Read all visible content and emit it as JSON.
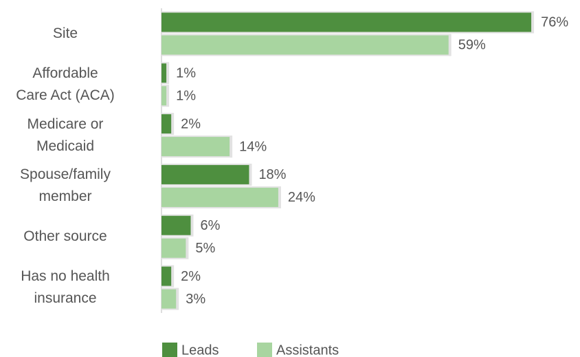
{
  "chart_data": {
    "type": "bar",
    "orientation": "horizontal",
    "categories": [
      "Site",
      "Affordable\nCare Act (ACA)",
      "Medicare or\nMedicaid",
      "Spouse/family\nmember",
      "Other source",
      "Has no health\ninsurance"
    ],
    "series": [
      {
        "name": "Leads",
        "color": "#4e8f3f",
        "values": [
          76,
          1,
          2,
          18,
          6,
          2
        ],
        "value_labels": [
          "76%",
          "1%",
          "2%",
          "18%",
          "6%",
          "2%"
        ]
      },
      {
        "name": "Assistants",
        "color": "#a8d5a0",
        "values": [
          59,
          1,
          14,
          24,
          5,
          3
        ],
        "value_labels": [
          "59%",
          "1%",
          "14%",
          "24%",
          "5%",
          "3%"
        ]
      }
    ],
    "legend": "bottom"
  }
}
